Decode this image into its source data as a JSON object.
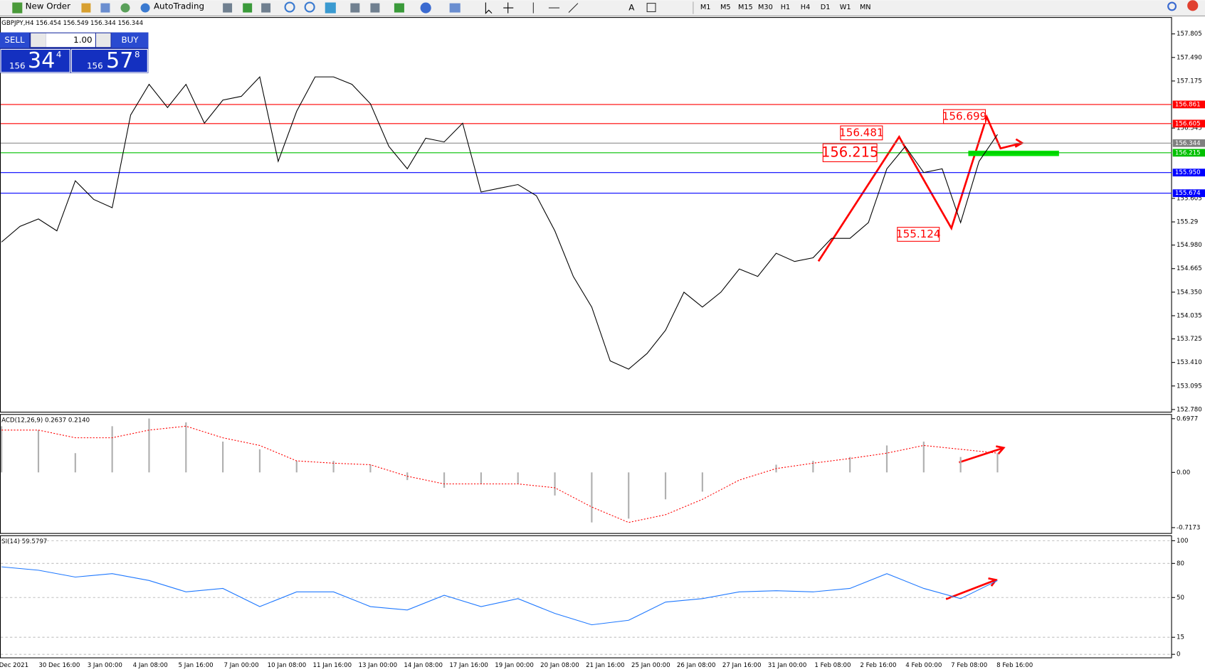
{
  "toolbar": {
    "new_order": "New Order",
    "auto_trading": "AutoTrading",
    "timeframes": [
      "M1",
      "M5",
      "M15",
      "M30",
      "H1",
      "H4",
      "D1",
      "W1",
      "MN"
    ]
  },
  "trade_panel": {
    "sell": "SELL",
    "lot": "1.00",
    "buy": "BUY",
    "bid": {
      "big_figure": "156",
      "pips": "34",
      "fraction": "4"
    },
    "ask": {
      "big_figure": "156",
      "pips": "57",
      "fraction": "8"
    }
  },
  "time_axis": {
    "labels": [
      "Dec 2021",
      "30 Dec 16:00",
      "3 Jan 00:00",
      "4 Jan 08:00",
      "5 Jan 16:00",
      "7 Jan 00:00",
      "10 Jan 08:00",
      "11 Jan 16:00",
      "13 Jan 00:00",
      "14 Jan 08:00",
      "17 Jan 16:00",
      "19 Jan 00:00",
      "20 Jan 08:00",
      "21 Jan 16:00",
      "25 Jan 00:00",
      "26 Jan 08:00",
      "27 Jan 16:00",
      "31 Jan 00:00",
      "1 Feb 08:00",
      "2 Feb 16:00",
      "4 Feb 00:00",
      "7 Feb 08:00",
      "8 Feb 16:00"
    ]
  },
  "chart_data": [
    {
      "type": "line",
      "title": "GBPJPY,H4  156.454 156.549 156.344 156.344",
      "color": "#000000",
      "values": [
        155.02,
        155.23,
        155.33,
        155.17,
        155.84,
        155.59,
        155.48,
        156.72,
        157.13,
        156.82,
        157.13,
        156.61,
        156.92,
        156.97,
        157.23,
        156.1,
        156.77,
        157.23,
        157.23,
        157.13,
        156.87,
        156.3,
        156.0,
        156.41,
        156.36,
        156.61,
        155.69,
        155.74,
        155.79,
        155.64,
        155.17,
        154.56,
        154.15,
        153.43,
        153.32,
        153.53,
        153.84,
        154.35,
        154.15,
        154.35,
        154.66,
        154.56,
        154.87,
        154.76,
        154.81,
        155.07,
        155.07,
        155.28,
        156.0,
        156.3,
        155.95,
        156.0,
        155.28,
        156.1,
        156.46
      ],
      "ylim": [
        152.74,
        158.03
      ],
      "yticks": [
        157.805,
        {
          "value": 157.49,
          "label": "157.490"
        },
        157.175,
        156.545,
        155.605,
        155.29,
        {
          "value": 154.98,
          "label": "154.980"
        },
        154.665,
        {
          "value": 154.35,
          "label": "154.350"
        },
        154.035,
        153.725,
        {
          "value": 153.41,
          "label": "153.410"
        },
        153.095,
        {
          "value": 152.78,
          "label": "152.780"
        }
      ],
      "levels": [
        {
          "value": 156.861,
          "color": "#ff0000"
        },
        {
          "value": 156.605,
          "color": "#ff0000"
        },
        {
          "value": 156.344,
          "color": "#808080"
        },
        {
          "value": 156.215,
          "color": "#00c000"
        },
        {
          "value": {
            "value": 155.95,
            "label": "155.950"
          },
          "color": "#0000ff"
        },
        {
          "value": 155.674,
          "color": "#0000ff"
        }
      ],
      "annotations": [
        156.215,
        156.481,
        156.699,
        155.124
      ]
    },
    {
      "type": "combo",
      "title": "ACD(12,26,9) 0.2637 0.2140",
      "series": [
        {
          "kind": "bar",
          "color": "#b0b0b0",
          "values": [
            0.6,
            0.55,
            0.25,
            0.6,
            0.7,
            0.65,
            0.4,
            0.3,
            0.15,
            0.15,
            0.1,
            -0.1,
            -0.2,
            -0.15,
            -0.15,
            -0.3,
            -0.65,
            -0.6,
            -0.35,
            -0.25,
            0,
            0.1,
            0.15,
            0.2,
            0.35,
            0.4,
            0.2,
            0.25
          ]
        },
        {
          "kind": "line",
          "color": "#ff0000",
          "values": [
            0.55,
            0.55,
            0.45,
            0.45,
            0.55,
            0.6,
            0.45,
            0.35,
            0.15,
            0.12,
            0.1,
            -0.05,
            -0.15,
            -0.15,
            -0.15,
            -0.2,
            -0.45,
            -0.65,
            -0.55,
            -0.35,
            -0.1,
            0.05,
            0.12,
            0.18,
            0.25,
            0.35,
            0.3,
            0.25
          ]
        }
      ],
      "ylim": [
        -0.798,
        0.758
      ],
      "yticks": [
        0.6977,
        {
          "value": 0,
          "label": "0.00"
        },
        -0.7173
      ]
    },
    {
      "type": "line",
      "title": "SI(14) 59.5797",
      "color": "#1e78ff",
      "values": [
        77,
        74,
        68,
        71,
        65,
        55,
        58,
        42,
        55,
        55,
        42,
        39,
        52,
        42,
        49,
        36,
        26,
        30,
        46,
        49,
        55,
        56,
        55,
        58,
        71,
        58,
        49,
        65
      ],
      "ylim": [
        -3.4,
        104.7
      ],
      "yticks": [
        100,
        80,
        50,
        15,
        0
      ]
    }
  ]
}
